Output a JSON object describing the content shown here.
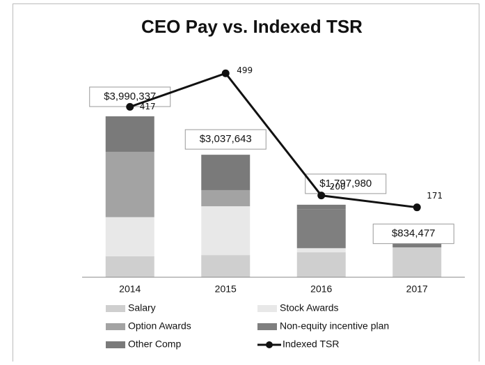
{
  "chart_data": {
    "type": "stacked_bar_line",
    "title": "CEO Pay vs. Indexed TSR",
    "categories": [
      "2014",
      "2015",
      "2016",
      "2017"
    ],
    "series": [
      {
        "name": "Salary",
        "color": "#cfcfcf",
        "values": [
          520000,
          550000,
          620000,
          740000
        ]
      },
      {
        "name": "Stock Awards",
        "color": "#e8e8e8",
        "values": [
          970000,
          1210000,
          100000,
          0
        ]
      },
      {
        "name": "Option Awards",
        "color": "#a3a3a3",
        "values": [
          1620000,
          400000,
          0,
          0
        ]
      },
      {
        "name": "Non-equity incentive plan",
        "color": "#7f7f7f",
        "values": [
          0,
          0,
          970000,
          0
        ]
      },
      {
        "name": "Other Comp",
        "color": "#7a7a7a",
        "values": [
          880337,
          877643,
          107980,
          94477
        ]
      },
      {
        "name": "Indexed TSR",
        "color": "#111111",
        "axis": "y2",
        "values": [
          417,
          499,
          200,
          171
        ]
      }
    ],
    "totals": {
      "values": [
        3990337,
        3037643,
        1797980,
        834477
      ],
      "value_labels": [
        "$3,990,337",
        "$3,037,643",
        "$1,797,980",
        "$834,477"
      ]
    },
    "ylim": [
      0,
      5320000
    ],
    "y2lim": [
      0,
      525
    ],
    "legend": "bottom"
  }
}
